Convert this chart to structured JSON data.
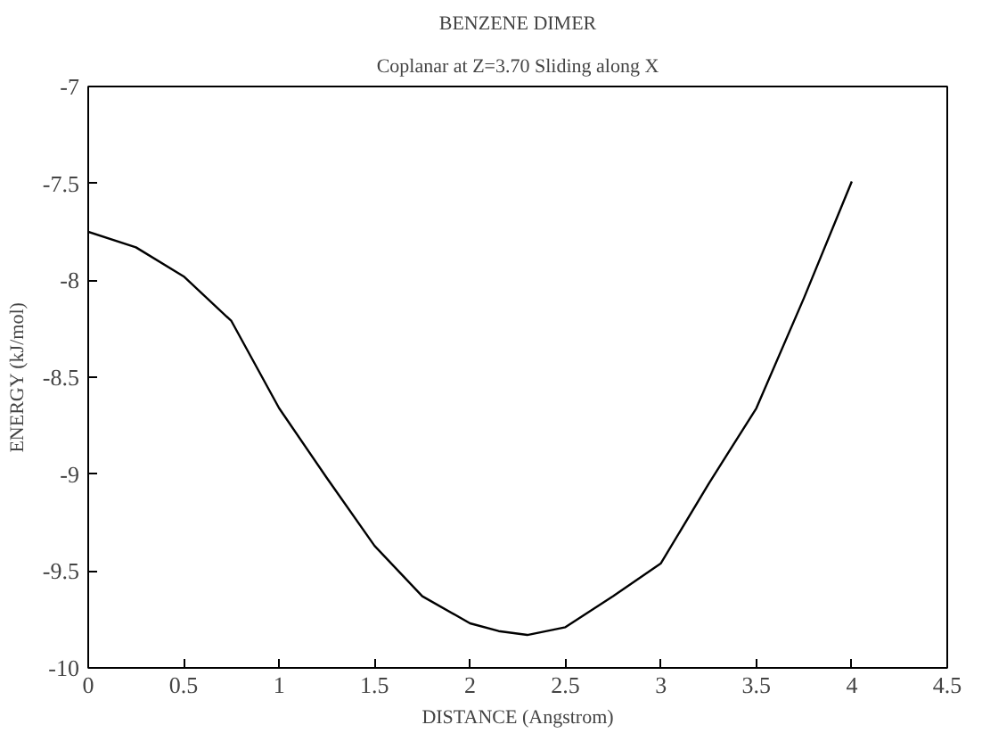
{
  "chart_data": {
    "type": "line",
    "title": "BENZENE DIMER",
    "subtitle": "Coplanar at Z=3.70 Sliding along X",
    "xlabel": "DISTANCE (Angstrom)",
    "ylabel": "ENERGY (kJ/mol)",
    "x": [
      0,
      0.25,
      0.5,
      0.75,
      1.0,
      1.25,
      1.5,
      1.75,
      2.0,
      2.15,
      2.3,
      2.5,
      2.75,
      3.0,
      3.25,
      3.5,
      3.75,
      4.0
    ],
    "series": [
      {
        "color": "#000000",
        "values": [
          -7.75,
          -7.83,
          -7.98,
          -8.21,
          -8.66,
          -9.02,
          -9.37,
          -9.63,
          -9.77,
          -9.81,
          -9.83,
          -9.79,
          -9.63,
          -9.46,
          -9.05,
          -8.66,
          -8.09,
          -7.49
        ]
      }
    ],
    "xlim": [
      0,
      4.5
    ],
    "ylim": [
      -10,
      -7
    ],
    "xticks": [
      0,
      0.5,
      1,
      1.5,
      2,
      2.5,
      3,
      3.5,
      4,
      4.5
    ],
    "yticks": [
      -10,
      -9.5,
      -9,
      -8.5,
      -8,
      -7.5,
      -7
    ],
    "grid": false,
    "marker": "none",
    "line_style": "solid"
  }
}
